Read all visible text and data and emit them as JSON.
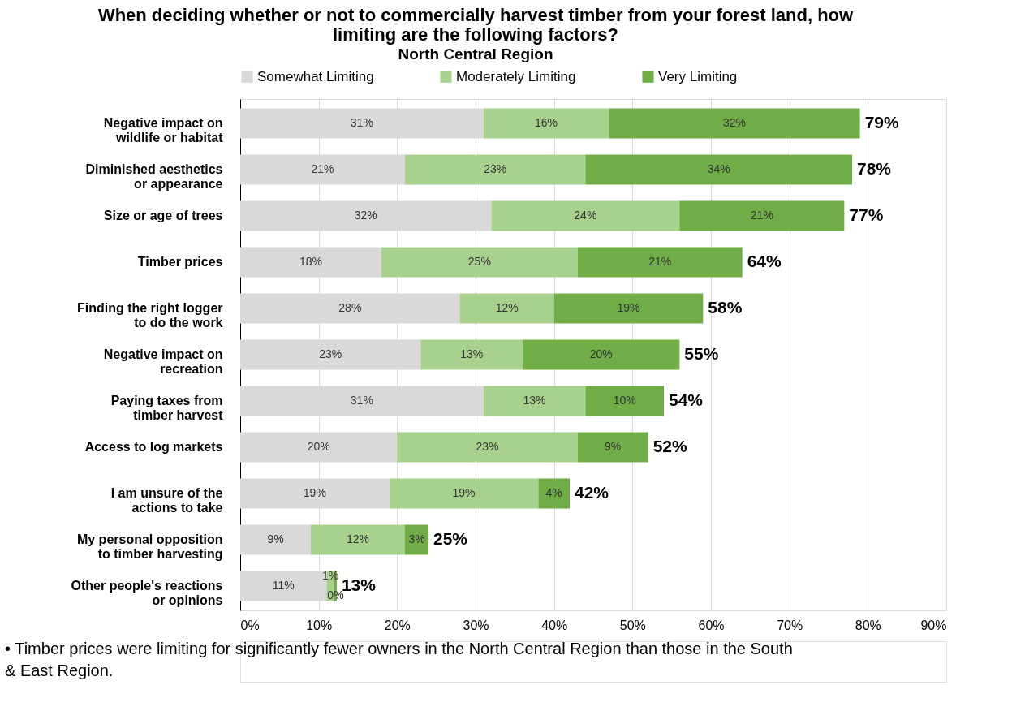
{
  "chart_data": {
    "type": "bar",
    "orientation": "horizontal",
    "stacked": true,
    "title": "When deciding whether or not to commercially harvest timber from your forest land, how\nlimiting are the following factors?",
    "subtitle": "North Central Region",
    "categories": [
      "Negative impact on\nwildlife or habitat",
      "Diminished aesthetics\nor appearance",
      "Size or age of trees",
      "Timber prices",
      "Finding the right logger\nto do the work",
      "Negative impact on\nrecreation",
      "Paying taxes from\ntimber harvest",
      "Access to log markets",
      "I am unsure of the\nactions to take",
      "My personal opposition\nto timber harvesting",
      "Other people's reactions\nor opinions"
    ],
    "series": [
      {
        "name": "Somewhat Limiting",
        "color": "#d9d9d9",
        "values": [
          31,
          21,
          32,
          18,
          28,
          23,
          31,
          20,
          19,
          9,
          11
        ],
        "value_labels": [
          "31%",
          "21%",
          "32%",
          "18%",
          "28%",
          "23%",
          "31%",
          "20%",
          "19%",
          "9%",
          "11%"
        ]
      },
      {
        "name": "Moderately Limiting",
        "color": "#a9d18e",
        "values": [
          16,
          23,
          24,
          25,
          12,
          13,
          13,
          23,
          19,
          12,
          1
        ],
        "value_labels": [
          "16%",
          "23%",
          "24%",
          "25%",
          "12%",
          "13%",
          "13%",
          "23%",
          "19%",
          "12%",
          "1%"
        ]
      },
      {
        "name": "Very Limiting",
        "color": "#70ad47",
        "values": [
          32,
          34,
          21,
          21,
          19,
          20,
          10,
          9,
          4,
          3,
          0.3
        ],
        "value_labels": [
          "32%",
          "34%",
          "21%",
          "21%",
          "19%",
          "20%",
          "10%",
          "9%",
          "4%",
          "3%",
          "0%"
        ]
      }
    ],
    "totals": [
      "79%",
      "78%",
      "77%",
      "64%",
      "58%",
      "55%",
      "54%",
      "52%",
      "42%",
      "25%",
      "13%"
    ],
    "xlim": [
      0,
      90
    ],
    "xticks": [
      {
        "value": 0,
        "label": "0%"
      },
      {
        "value": 10,
        "label": "10%"
      },
      {
        "value": 20,
        "label": "20%"
      },
      {
        "value": 30,
        "label": "30%"
      },
      {
        "value": 40,
        "label": "40%"
      },
      {
        "value": 50,
        "label": "50%"
      },
      {
        "value": 60,
        "label": "60%"
      },
      {
        "value": 70,
        "label": "70%"
      },
      {
        "value": 80,
        "label": "80%"
      },
      {
        "value": 90,
        "label": "90%"
      }
    ],
    "grid": "x",
    "legend": "top",
    "annotations": [
      "•  Timber prices were limiting for significantly fewer owners in the North Central Region than those in the South\n    & East Region."
    ]
  }
}
